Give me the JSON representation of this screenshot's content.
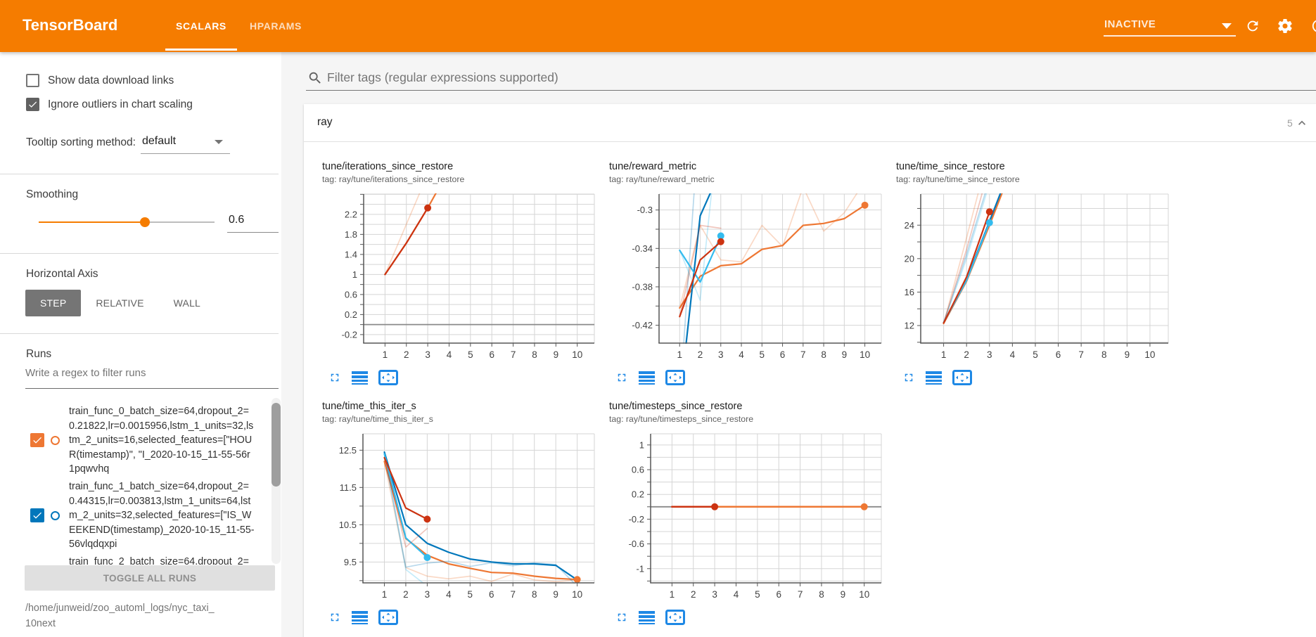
{
  "header": {
    "title": "TensorBoard",
    "tabs": [
      {
        "label": "SCALARS",
        "active": true
      },
      {
        "label": "HPARAMS",
        "active": false
      }
    ],
    "status": "INACTIVE",
    "icons": [
      "refresh-icon",
      "settings-gear-icon",
      "help-icon"
    ]
  },
  "sidebar": {
    "checkboxes": [
      {
        "label": "Show data download links",
        "checked": false
      },
      {
        "label": "Ignore outliers in chart scaling",
        "checked": true
      }
    ],
    "tooltip_sorting": {
      "label": "Tooltip sorting method:",
      "value": "default"
    },
    "smoothing": {
      "label": "Smoothing",
      "value": "0.6",
      "fraction": 0.605
    },
    "horizontal_axis": {
      "label": "Horizontal Axis",
      "options": [
        "STEP",
        "RELATIVE",
        "WALL"
      ],
      "selected": "STEP"
    },
    "runs": {
      "label": "Runs",
      "filter_placeholder": "Write a regex to filter runs",
      "items": [
        {
          "label": "train_func_0_batch_size=64,dropout_2=0.21822,lr=0.0015956,lstm_1_units=32,lstm_2_units=16,selected_features=[\"HOUR(timestamp)\", \"I_2020-10-15_11-55-56r1pqwvhq",
          "color": "#EE7733",
          "checked": true
        },
        {
          "label": "train_func_1_batch_size=64,dropout_2=0.44315,lr=0.003813,lstm_1_units=64,lstm_2_units=32,selected_features=[\"IS_WEEKEND(timestamp)_2020-10-15_11-55-56vlqdqxpi",
          "color": "#0077BB",
          "checked": true
        },
        {
          "label": "train_func_2_batch_size=64,dropout_2=",
          "color": "#33BBEE",
          "checked": true
        }
      ],
      "toggle_all_label": "TOGGLE ALL RUNS",
      "logdir": "/home/junweid/zoo_automl_logs/nyc_taxi_10next"
    }
  },
  "main": {
    "tag_filter_placeholder": "Filter tags (regular expressions supported)",
    "card": {
      "title": "ray",
      "count": "5"
    }
  },
  "chart_data": [
    {
      "type": "line",
      "title": "tune/iterations_since_restore",
      "tag": "tag: ray/tune/iterations_since_restore",
      "xlabel": "step",
      "xticks": [
        1,
        2,
        3,
        4,
        5,
        6,
        7,
        8,
        9,
        10
      ],
      "xmax": 10.8,
      "ylim": [
        -0.37,
        2.605
      ],
      "minor_step": 0.2,
      "majors": [
        -0.2,
        0.2,
        0.6,
        1,
        1.4,
        1.8,
        2.2
      ],
      "major_labels": [
        "-0.2",
        "0.2",
        "0.6",
        "1",
        "1.4",
        "1.8",
        "2.2"
      ],
      "left_margin": 77,
      "zero_line": true,
      "series": [
        {
          "name": "train_func_0 (raw)",
          "color": "#EE7733",
          "opacity": 0.28,
          "width": 1.7,
          "points": [
            [
              1,
              1
            ],
            [
              2,
              2
            ],
            [
              3,
              3
            ]
          ]
        },
        {
          "name": "train_func_0 (smoothed)",
          "color": "#EE7733",
          "opacity": 1,
          "width": 2.2,
          "points": [
            [
              1,
              1
            ],
            [
              2,
              1.625
            ],
            [
              3,
              2.327
            ],
            [
              4,
              3.096
            ]
          ]
        },
        {
          "name": "train_func_4 (smoothed)",
          "color": "#CC3311",
          "opacity": 1,
          "width": 2.2,
          "points": [
            [
              1,
              1
            ],
            [
              2,
              1.625
            ],
            [
              3,
              2.327
            ]
          ],
          "dot": [
            3,
            2.327
          ]
        }
      ]
    },
    {
      "type": "line",
      "title": "tune/reward_metric",
      "tag": "tag: ray/tune/reward_metric",
      "xlabel": "step",
      "xticks": [
        1,
        2,
        3,
        4,
        5,
        6,
        7,
        8,
        9,
        10
      ],
      "xmax": 10.8,
      "ylim": [
        -0.4386,
        -0.2834
      ],
      "minor_step": 0.02,
      "majors": [
        -0.42,
        -0.38,
        -0.34,
        -0.3
      ],
      "major_labels": [
        "-0.42",
        "-0.38",
        "-0.34",
        "-0.3"
      ],
      "left_margin": 89,
      "zero_line": false,
      "series": [
        {
          "name": "train_func_0 (raw)",
          "color": "#EE7733",
          "opacity": 0.28,
          "width": 1.7,
          "points": [
            [
              1,
              -0.402
            ],
            [
              2,
              -0.316
            ],
            [
              3,
              -0.352
            ],
            [
              4,
              -0.354
            ],
            [
              5,
              -0.316
            ],
            [
              6,
              -0.338
            ],
            [
              7,
              -0.276
            ],
            [
              8,
              -0.322
            ],
            [
              9,
              -0.303
            ],
            [
              10,
              -0.27
            ]
          ]
        },
        {
          "name": "train_func_0 (smoothed)",
          "color": "#EE7733",
          "opacity": 1,
          "width": 2.2,
          "points": [
            [
              1,
              -0.402
            ],
            [
              2,
              -0.369
            ],
            [
              3,
              -0.358
            ],
            [
              4,
              -0.356
            ],
            [
              5,
              -0.341
            ],
            [
              6,
              -0.337
            ],
            [
              7,
              -0.316
            ],
            [
              8,
              -0.314
            ],
            [
              9,
              -0.309
            ],
            [
              10,
              -0.295
            ]
          ],
          "dot": [
            10,
            -0.295
          ]
        },
        {
          "name": "train_func_1 (raw)",
          "color": "#0077BB",
          "opacity": 0.28,
          "width": 1.7,
          "points": [
            [
              1,
              -0.5
            ],
            [
              2,
              -0.19
            ],
            [
              3,
              -0.15
            ]
          ]
        },
        {
          "name": "train_func_1 (smoothed)",
          "color": "#0077BB",
          "opacity": 1,
          "width": 2.2,
          "points": [
            [
              1,
              -0.5
            ],
            [
              2,
              -0.306
            ],
            [
              3,
              -0.258
            ]
          ]
        },
        {
          "name": "train_func_2 (raw)",
          "color": "#33BBEE",
          "opacity": 0.28,
          "width": 1.7,
          "points": [
            [
              1,
              -0.342
            ],
            [
              2,
              -0.394
            ],
            [
              3,
              -0.19
            ]
          ]
        },
        {
          "name": "train_func_2 (smoothed)",
          "color": "#33BBEE",
          "opacity": 1,
          "width": 2.2,
          "points": [
            [
              1,
              -0.342
            ],
            [
              2,
              -0.375
            ],
            [
              3,
              -0.327
            ]
          ],
          "dot": [
            3,
            -0.327
          ]
        },
        {
          "name": "train_func_4 (raw)",
          "color": "#CC3311",
          "opacity": 0.28,
          "width": 1.7,
          "points": [
            [
              1,
              -0.411
            ],
            [
              2,
              -0.316
            ],
            [
              3,
              -0.319
            ]
          ]
        },
        {
          "name": "train_func_4 (smoothed)",
          "color": "#CC3311",
          "opacity": 1,
          "width": 2.2,
          "points": [
            [
              1,
              -0.411
            ],
            [
              2,
              -0.352
            ],
            [
              3,
              -0.333
            ]
          ],
          "dot": [
            3,
            -0.333
          ]
        }
      ]
    },
    {
      "type": "line",
      "title": "tune/time_since_restore",
      "tag": "tag: ray/tune/time_since_restore",
      "xlabel": "step",
      "xticks": [
        1,
        2,
        3,
        4,
        5,
        6,
        7,
        8,
        9,
        10
      ],
      "xmax": 10.8,
      "ylim": [
        9.9,
        27.72
      ],
      "minor_step": 2,
      "majors": [
        12,
        16,
        20,
        24
      ],
      "major_labels": [
        "12",
        "16",
        "20",
        "24"
      ],
      "left_margin": 53,
      "zero_line": false,
      "series": [
        {
          "name": "train_func_0 (raw)",
          "color": "#EE7733",
          "opacity": 0.28,
          "width": 1.7,
          "points": [
            [
              1,
              12.2
            ],
            [
              2,
              22.5
            ],
            [
              3,
              33
            ]
          ]
        },
        {
          "name": "train_func_1 (raw)",
          "color": "#0077BB",
          "opacity": 0.28,
          "width": 1.7,
          "points": [
            [
              1,
              12.35
            ],
            [
              2,
              20.5
            ],
            [
              3,
              29.5
            ]
          ]
        },
        {
          "name": "train_func_2 (raw)",
          "color": "#33BBEE",
          "opacity": 0.28,
          "width": 1.7,
          "points": [
            [
              1,
              12.35
            ],
            [
              2,
              20
            ],
            [
              3,
              29
            ]
          ]
        },
        {
          "name": "train_func_4 (raw)",
          "color": "#CC3311",
          "opacity": 0.28,
          "width": 1.7,
          "points": [
            [
              1,
              12.3
            ],
            [
              2,
              21.1
            ],
            [
              3,
              31
            ]
          ]
        },
        {
          "name": "train_func_0 (smoothed)",
          "color": "#EE7733",
          "opacity": 1,
          "width": 2.2,
          "points": [
            [
              1,
              12.25
            ],
            [
              2,
              17.3
            ],
            [
              3,
              24
            ],
            [
              4,
              31
            ]
          ]
        },
        {
          "name": "train_func_1 (smoothed)",
          "color": "#0077BB",
          "opacity": 1,
          "width": 2.2,
          "points": [
            [
              1,
              12.35
            ],
            [
              2,
              17.5
            ],
            [
              3,
              24.45
            ],
            [
              4,
              31.5
            ]
          ]
        },
        {
          "name": "train_func_2 (smoothed)",
          "color": "#33BBEE",
          "opacity": 1,
          "width": 2.2,
          "points": [
            [
              1,
              12.35
            ],
            [
              2,
              17.4
            ],
            [
              3,
              24.3
            ]
          ],
          "dot": [
            3,
            24.3
          ]
        },
        {
          "name": "train_func_4 (smoothed)",
          "color": "#CC3311",
          "opacity": 1,
          "width": 2.2,
          "points": [
            [
              1,
              12.3
            ],
            [
              2,
              17.8
            ],
            [
              3,
              25.6
            ]
          ],
          "dot": [
            3,
            25.6
          ]
        }
      ]
    },
    {
      "type": "line",
      "title": "tune/time_this_iter_s",
      "tag": "tag: ray/tune/time_this_iter_s",
      "xlabel": "step",
      "xticks": [
        1,
        2,
        3,
        4,
        5,
        6,
        7,
        8,
        9,
        10
      ],
      "xmax": 10.8,
      "ylim": [
        8.94,
        12.94
      ],
      "minor_step": 0.5,
      "majors": [
        9.5,
        10.5,
        11.5,
        12.5
      ],
      "major_labels": [
        "9.5",
        "10.5",
        "11.5",
        "12.5"
      ],
      "left_margin": 76,
      "zero_line": false,
      "series": [
        {
          "name": "train_func_0 (raw)",
          "color": "#EE7733",
          "opacity": 0.28,
          "width": 1.7,
          "points": [
            [
              1,
              12.2
            ],
            [
              2,
              9.35
            ],
            [
              3,
              9.12
            ],
            [
              4,
              9.05
            ],
            [
              5,
              9.12
            ],
            [
              6,
              8.98
            ],
            [
              7,
              9.18
            ],
            [
              8,
              9.02
            ],
            [
              9,
              8.97
            ],
            [
              10,
              9.02
            ]
          ]
        },
        {
          "name": "train_func_0 (smoothed)",
          "color": "#EE7733",
          "opacity": 1,
          "width": 2.2,
          "points": [
            [
              1,
              12.2
            ],
            [
              2,
              10.13
            ],
            [
              3,
              9.68
            ],
            [
              4,
              9.45
            ],
            [
              5,
              9.33
            ],
            [
              6,
              9.22
            ],
            [
              7,
              9.2
            ],
            [
              8,
              9.12
            ],
            [
              9,
              9.06
            ],
            [
              10,
              9.03
            ]
          ],
          "dot": [
            10,
            9.03
          ]
        },
        {
          "name": "train_func_1 (raw)",
          "color": "#0077BB",
          "opacity": 0.28,
          "width": 1.7,
          "points": [
            [
              1,
              12.42
            ],
            [
              2,
              9.36
            ],
            [
              3,
              9.47
            ],
            [
              4,
              9.52
            ],
            [
              5,
              9.38
            ],
            [
              6,
              9.48
            ],
            [
              7,
              9.4
            ],
            [
              8,
              9.48
            ],
            [
              9,
              9.43
            ],
            [
              10,
              8.85
            ]
          ]
        },
        {
          "name": "train_func_1 (smoothed)",
          "color": "#0077BB",
          "opacity": 1,
          "width": 2.2,
          "points": [
            [
              1,
              12.45
            ],
            [
              2,
              10.5
            ],
            [
              3,
              10
            ],
            [
              4,
              9.76
            ],
            [
              5,
              9.58
            ],
            [
              6,
              9.5
            ],
            [
              7,
              9.45
            ],
            [
              8,
              9.45
            ],
            [
              9,
              9.41
            ],
            [
              10,
              9.02
            ]
          ]
        },
        {
          "name": "train_func_2 (raw)",
          "color": "#33BBEE",
          "opacity": 0.28,
          "width": 1.7,
          "points": [
            [
              1,
              12.4
            ],
            [
              2,
              9.3
            ],
            [
              3,
              8.85
            ]
          ]
        },
        {
          "name": "train_func_2 (smoothed)",
          "color": "#33BBEE",
          "opacity": 1,
          "width": 2.2,
          "points": [
            [
              1,
              12.4
            ],
            [
              2,
              10.15
            ],
            [
              3,
              9.62
            ]
          ],
          "dot": [
            3,
            9.62
          ]
        },
        {
          "name": "train_func_4 (raw)",
          "color": "#CC3311",
          "opacity": 0.28,
          "width": 1.7,
          "points": [
            [
              1,
              12.3
            ],
            [
              2,
              9.9
            ],
            [
              3,
              10.4
            ]
          ]
        },
        {
          "name": "train_func_4 (smoothed)",
          "color": "#CC3311",
          "opacity": 1,
          "width": 2.2,
          "points": [
            [
              1,
              12.3
            ],
            [
              2,
              10.95
            ],
            [
              3,
              10.65
            ]
          ],
          "dot": [
            3,
            10.65
          ]
        }
      ]
    },
    {
      "type": "line",
      "title": "tune/timesteps_since_restore",
      "tag": "tag: ray/tune/timesteps_since_restore",
      "xlabel": "step",
      "xticks": [
        1,
        2,
        3,
        4,
        5,
        6,
        7,
        8,
        9,
        10
      ],
      "xmax": 10.8,
      "ylim": [
        -1.23,
        1.18
      ],
      "minor_step": 0.2,
      "majors": [
        -1,
        -0.6,
        -0.2,
        0.2,
        0.6,
        1
      ],
      "major_labels": [
        "-1",
        "-0.6",
        "-0.2",
        "0.2",
        "0.6",
        "1"
      ],
      "left_margin": 77,
      "zero_line": true,
      "series": [
        {
          "name": "train_func_0 (smoothed)",
          "color": "#EE7733",
          "opacity": 1,
          "width": 2.5,
          "points": [
            [
              1,
              0
            ],
            [
              10,
              0
            ]
          ],
          "dot": [
            10,
            0
          ]
        },
        {
          "name": "train_func_4 (smoothed)",
          "color": "#CC3311",
          "opacity": 1,
          "width": 2.5,
          "points": [
            [
              1,
              0
            ],
            [
              3,
              0
            ]
          ],
          "dot": [
            3,
            0
          ]
        }
      ]
    }
  ]
}
